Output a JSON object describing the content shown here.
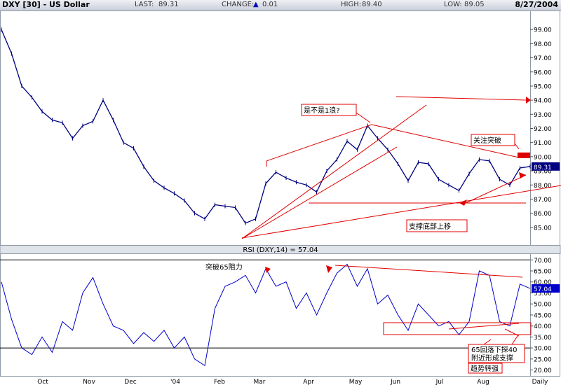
{
  "header": {
    "title": "DXY [30] - US Dollar",
    "last_label": "LAST:",
    "last_value": "89.31",
    "change_label": "CHANGE:",
    "change_arrow": "▲",
    "change_value": "0.01",
    "high_label": "HIGH:",
    "high_value": "89.40",
    "low_label": "LOW:",
    "low_value": "89.05",
    "date": "8/27/2004"
  },
  "rsi_label": "RSI (DXY,14) = 57.04",
  "colors": {
    "series": "#000080",
    "annotation": "#e00000",
    "price_tag": "#000080",
    "rsi_tag": "#0000cc"
  },
  "chart_data": [
    {
      "type": "line",
      "name": "price",
      "ylim": [
        84,
        100
      ],
      "yticks": [
        85,
        86,
        87,
        88,
        89,
        90,
        91,
        92,
        93,
        94,
        95,
        96,
        97,
        98,
        99
      ],
      "ytick_labels": [
        "85.00",
        "86.00",
        "87.00",
        "88.00",
        "89.00",
        "90.00",
        "91.00",
        "92.00",
        "93.00",
        "94.00",
        "95.00",
        "96.00",
        "97.00",
        "98.00",
        "99.00"
      ],
      "last_tag": "89.31",
      "x": [
        "Sep-1",
        "Sep-8",
        "Sep-15",
        "Sep-22",
        "Sep-29",
        "Oct-6",
        "Oct-13",
        "Oct-20",
        "Oct-27",
        "Nov-3",
        "Nov-10",
        "Nov-17",
        "Nov-24",
        "Dec-1",
        "Dec-8",
        "Dec-15",
        "Dec-22",
        "Dec-29",
        "Jan-5",
        "Jan-12",
        "Jan-19",
        "Jan-26",
        "Feb-2",
        "Feb-9",
        "Feb-16",
        "Feb-23",
        "Mar-1",
        "Mar-8",
        "Mar-15",
        "Mar-22",
        "Mar-29",
        "Apr-5",
        "Apr-12",
        "Apr-19",
        "Apr-26",
        "May-3",
        "May-10",
        "May-17",
        "May-24",
        "May-31",
        "Jun-7",
        "Jun-14",
        "Jun-21",
        "Jun-28",
        "Jul-5",
        "Jul-12",
        "Jul-19",
        "Jul-26",
        "Aug-2",
        "Aug-9",
        "Aug-16",
        "Aug-23",
        "Aug-27"
      ],
      "values": [
        99.0,
        97.3,
        95.0,
        94.2,
        93.2,
        92.6,
        92.4,
        91.3,
        92.2,
        92.5,
        94.0,
        92.6,
        91.0,
        90.6,
        89.3,
        88.3,
        87.8,
        87.4,
        86.9,
        86.0,
        85.6,
        86.6,
        86.5,
        86.4,
        85.3,
        85.6,
        88.1,
        88.9,
        88.5,
        88.2,
        88.0,
        87.5,
        89.0,
        89.8,
        91.1,
        90.5,
        92.2,
        91.3,
        90.5,
        89.5,
        88.3,
        89.6,
        89.5,
        88.4,
        88.0,
        87.6,
        88.8,
        89.8,
        89.7,
        88.4,
        88.0,
        89.2,
        89.31
      ]
    },
    {
      "type": "line",
      "name": "RSI (DXY,14)",
      "ylim": [
        17,
        72
      ],
      "yticks": [
        20,
        25,
        30,
        35,
        40,
        45,
        50,
        55,
        60,
        65,
        70
      ],
      "ytick_labels": [
        "20.00",
        "25.00",
        "30.00",
        "35.00",
        "40.00",
        "45.00",
        "50.00",
        "55.00",
        "60.00",
        "65.00",
        "70.00"
      ],
      "reference_lines": [
        70,
        30
      ],
      "last_tag": "57.04",
      "x": [
        "Sep-1",
        "Sep-8",
        "Sep-15",
        "Sep-22",
        "Sep-29",
        "Oct-6",
        "Oct-13",
        "Oct-20",
        "Oct-27",
        "Nov-3",
        "Nov-10",
        "Nov-17",
        "Nov-24",
        "Dec-1",
        "Dec-8",
        "Dec-15",
        "Dec-22",
        "Dec-29",
        "Jan-5",
        "Jan-12",
        "Jan-19",
        "Jan-26",
        "Feb-2",
        "Feb-9",
        "Feb-16",
        "Feb-23",
        "Mar-1",
        "Mar-8",
        "Mar-15",
        "Mar-22",
        "Mar-29",
        "Apr-5",
        "Apr-12",
        "Apr-19",
        "Apr-26",
        "May-3",
        "May-10",
        "May-17",
        "May-24",
        "May-31",
        "Jun-7",
        "Jun-14",
        "Jun-21",
        "Jun-28",
        "Jul-5",
        "Jul-12",
        "Jul-19",
        "Jul-26",
        "Aug-2",
        "Aug-9",
        "Aug-16",
        "Aug-23",
        "Aug-27"
      ],
      "values": [
        60,
        43,
        30,
        27,
        35,
        28,
        42,
        38,
        55,
        62,
        50,
        40,
        38,
        32,
        37,
        33,
        38,
        30,
        35,
        25,
        22,
        48,
        58,
        60,
        63,
        55,
        66,
        58,
        60,
        48,
        55,
        45,
        55,
        64,
        68,
        58,
        66,
        50,
        54,
        45,
        38,
        50,
        45,
        40,
        42,
        36,
        42,
        65,
        63,
        42,
        40,
        59,
        57.04
      ]
    }
  ],
  "x_axis": {
    "tick_labels": [
      "Oct",
      "Nov",
      "Dec",
      "'04",
      "Feb",
      "Mar",
      "Apr",
      "May",
      "Jun",
      "Jul",
      "Aug",
      "Daily"
    ]
  },
  "annotations": {
    "wave_question": "是不是1浪?",
    "watch_breakout": "关注突破",
    "support_rising": "支撑底部上移",
    "rsi_breakout": "突破65阻力",
    "rsi_support_line1": "65回落下探40",
    "rsi_support_line2": "附近形成支撑",
    "trend_strong": "趋势转强"
  }
}
